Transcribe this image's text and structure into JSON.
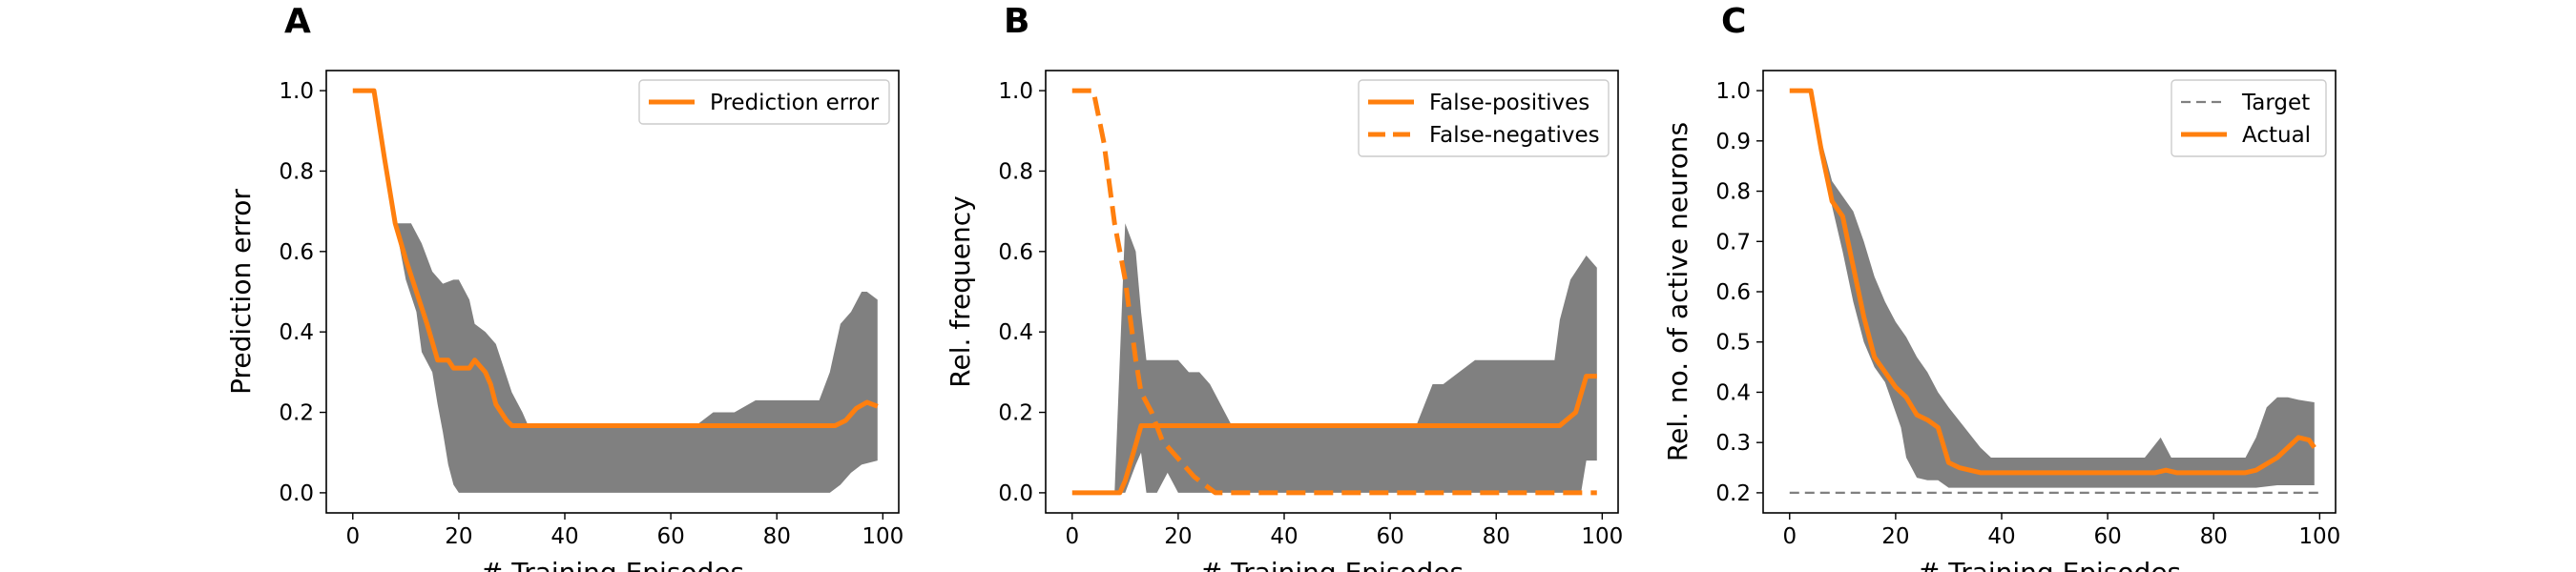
{
  "chart_data": [
    {
      "type": "line",
      "panel_label": "A",
      "xlabel": "# Training Episodes",
      "ylabel": "Prediction error",
      "xlim": [
        -5,
        103
      ],
      "ylim": [
        -0.05,
        1.05
      ],
      "xticks": [
        0,
        20,
        40,
        60,
        80,
        100
      ],
      "yticks": [
        0.0,
        0.2,
        0.4,
        0.6,
        0.8,
        1.0
      ],
      "ytick_labels": [
        "0.0",
        "0.2",
        "0.4",
        "0.6",
        "0.8",
        "1.0"
      ],
      "legend": {
        "position": "upper right",
        "entries": [
          "Prediction error"
        ]
      },
      "band": {
        "color": "#808080",
        "upper": [
          [
            0,
            1.0
          ],
          [
            4,
            1.0
          ],
          [
            8,
            0.67
          ],
          [
            11,
            0.67
          ],
          [
            13,
            0.62
          ],
          [
            15,
            0.55
          ],
          [
            17,
            0.52
          ],
          [
            19,
            0.53
          ],
          [
            20,
            0.53
          ],
          [
            22,
            0.48
          ],
          [
            23,
            0.42
          ],
          [
            25,
            0.4
          ],
          [
            27,
            0.37
          ],
          [
            28,
            0.33
          ],
          [
            30,
            0.25
          ],
          [
            32,
            0.2
          ],
          [
            33,
            0.17
          ],
          [
            35,
            0.17
          ],
          [
            65,
            0.17
          ],
          [
            68,
            0.2
          ],
          [
            72,
            0.2
          ],
          [
            76,
            0.23
          ],
          [
            80,
            0.23
          ],
          [
            86,
            0.23
          ],
          [
            88,
            0.23
          ],
          [
            90,
            0.3
          ],
          [
            92,
            0.42
          ],
          [
            94,
            0.45
          ],
          [
            96,
            0.5
          ],
          [
            97,
            0.5
          ],
          [
            99,
            0.48
          ]
        ],
        "lower": [
          [
            0,
            1.0
          ],
          [
            4,
            1.0
          ],
          [
            8,
            0.67
          ],
          [
            10,
            0.53
          ],
          [
            12,
            0.45
          ],
          [
            13,
            0.35
          ],
          [
            15,
            0.3
          ],
          [
            16,
            0.22
          ],
          [
            17,
            0.15
          ],
          [
            18,
            0.07
          ],
          [
            19,
            0.02
          ],
          [
            20,
            0.0
          ],
          [
            90,
            0.0
          ],
          [
            92,
            0.02
          ],
          [
            94,
            0.05
          ],
          [
            96,
            0.07
          ],
          [
            99,
            0.08
          ]
        ]
      },
      "series": [
        {
          "name": "Prediction error",
          "color": "#ff7f0e",
          "style": "solid",
          "points": [
            [
              0,
              1.0
            ],
            [
              4,
              1.0
            ],
            [
              6,
              0.83
            ],
            [
              8,
              0.67
            ],
            [
              10,
              0.58
            ],
            [
              12,
              0.5
            ],
            [
              14,
              0.42
            ],
            [
              16,
              0.33
            ],
            [
              18,
              0.33
            ],
            [
              19,
              0.31
            ],
            [
              22,
              0.31
            ],
            [
              23,
              0.33
            ],
            [
              25,
              0.3
            ],
            [
              26,
              0.27
            ],
            [
              27,
              0.22
            ],
            [
              29,
              0.18
            ],
            [
              30,
              0.167
            ],
            [
              91,
              0.167
            ],
            [
              93,
              0.18
            ],
            [
              95,
              0.21
            ],
            [
              97,
              0.225
            ],
            [
              99,
              0.215
            ]
          ]
        }
      ]
    },
    {
      "type": "line",
      "panel_label": "B",
      "xlabel": "# Training Episodes",
      "ylabel": "Rel. frequency",
      "xlim": [
        -5,
        103
      ],
      "ylim": [
        -0.05,
        1.05
      ],
      "xticks": [
        0,
        20,
        40,
        60,
        80,
        100
      ],
      "yticks": [
        0.0,
        0.2,
        0.4,
        0.6,
        0.8,
        1.0
      ],
      "ytick_labels": [
        "0.0",
        "0.2",
        "0.4",
        "0.6",
        "0.8",
        "1.0"
      ],
      "legend": {
        "position": "upper right",
        "entries": [
          "False-positives",
          "False-negatives"
        ]
      },
      "band": {
        "color": "#808080",
        "upper": [
          [
            0,
            0.0
          ],
          [
            8,
            0.0
          ],
          [
            10,
            0.67
          ],
          [
            12,
            0.6
          ],
          [
            13,
            0.45
          ],
          [
            14,
            0.33
          ],
          [
            16,
            0.33
          ],
          [
            18,
            0.33
          ],
          [
            20,
            0.33
          ],
          [
            22,
            0.3
          ],
          [
            24,
            0.3
          ],
          [
            26,
            0.27
          ],
          [
            28,
            0.22
          ],
          [
            30,
            0.17
          ],
          [
            65,
            0.17
          ],
          [
            68,
            0.27
          ],
          [
            70,
            0.27
          ],
          [
            76,
            0.33
          ],
          [
            80,
            0.33
          ],
          [
            88,
            0.33
          ],
          [
            91,
            0.33
          ],
          [
            92,
            0.43
          ],
          [
            94,
            0.53
          ],
          [
            96,
            0.57
          ],
          [
            97,
            0.59
          ],
          [
            99,
            0.56
          ]
        ],
        "lower": [
          [
            0,
            0.0
          ],
          [
            8,
            0.0
          ],
          [
            10,
            0.0
          ],
          [
            12,
            0.07
          ],
          [
            13,
            0.1
          ],
          [
            14,
            0.0
          ],
          [
            16,
            0.0
          ],
          [
            18,
            0.05
          ],
          [
            20,
            0.0
          ],
          [
            96,
            0.0
          ],
          [
            97,
            0.08
          ],
          [
            98,
            0.08
          ],
          [
            99,
            0.08
          ]
        ]
      },
      "series": [
        {
          "name": "False-positives",
          "color": "#ff7f0e",
          "style": "solid",
          "points": [
            [
              0,
              0.0
            ],
            [
              9,
              0.0
            ],
            [
              10,
              0.03
            ],
            [
              12,
              0.12
            ],
            [
              13,
              0.167
            ],
            [
              92,
              0.167
            ],
            [
              95,
              0.2
            ],
            [
              97,
              0.29
            ],
            [
              99,
              0.29
            ]
          ]
        },
        {
          "name": "False-negatives",
          "color": "#ff7f0e",
          "style": "dashed",
          "points": [
            [
              0,
              1.0
            ],
            [
              4,
              1.0
            ],
            [
              6,
              0.87
            ],
            [
              8,
              0.67
            ],
            [
              10,
              0.53
            ],
            [
              12,
              0.33
            ],
            [
              13,
              0.25
            ],
            [
              15,
              0.2
            ],
            [
              17,
              0.13
            ],
            [
              19,
              0.1
            ],
            [
              21,
              0.07
            ],
            [
              23,
              0.04
            ],
            [
              25,
              0.02
            ],
            [
              27,
              0.0
            ],
            [
              99,
              0.0
            ]
          ]
        }
      ]
    },
    {
      "type": "line",
      "panel_label": "C",
      "xlabel": "# Training Episodes",
      "ylabel": "Rel. no. of active neurons",
      "xlim": [
        -5,
        103
      ],
      "ylim": [
        0.16,
        1.04
      ],
      "xticks": [
        0,
        20,
        40,
        60,
        80,
        100
      ],
      "yticks": [
        0.2,
        0.3,
        0.4,
        0.5,
        0.6,
        0.7,
        0.8,
        0.9,
        1.0
      ],
      "ytick_labels": [
        "0.2",
        "0.3",
        "0.4",
        "0.5",
        "0.6",
        "0.7",
        "0.8",
        "0.9",
        "1.0"
      ],
      "legend": {
        "position": "upper right",
        "entries": [
          "Target",
          "Actual"
        ]
      },
      "band": {
        "color": "#808080",
        "upper": [
          [
            0,
            1.0
          ],
          [
            4,
            1.0
          ],
          [
            6,
            0.9
          ],
          [
            8,
            0.82
          ],
          [
            10,
            0.79
          ],
          [
            12,
            0.76
          ],
          [
            14,
            0.7
          ],
          [
            16,
            0.63
          ],
          [
            18,
            0.58
          ],
          [
            20,
            0.54
          ],
          [
            22,
            0.51
          ],
          [
            24,
            0.47
          ],
          [
            26,
            0.44
          ],
          [
            28,
            0.4
          ],
          [
            30,
            0.37
          ],
          [
            33,
            0.33
          ],
          [
            36,
            0.29
          ],
          [
            38,
            0.27
          ],
          [
            67,
            0.27
          ],
          [
            70,
            0.31
          ],
          [
            72,
            0.27
          ],
          [
            86,
            0.27
          ],
          [
            88,
            0.31
          ],
          [
            90,
            0.37
          ],
          [
            92,
            0.39
          ],
          [
            94,
            0.39
          ],
          [
            96,
            0.385
          ],
          [
            99,
            0.38
          ]
        ],
        "lower": [
          [
            0,
            1.0
          ],
          [
            4,
            1.0
          ],
          [
            6,
            0.87
          ],
          [
            8,
            0.77
          ],
          [
            10,
            0.68
          ],
          [
            12,
            0.58
          ],
          [
            14,
            0.5
          ],
          [
            16,
            0.45
          ],
          [
            18,
            0.42
          ],
          [
            20,
            0.36
          ],
          [
            21,
            0.33
          ],
          [
            22,
            0.27
          ],
          [
            24,
            0.23
          ],
          [
            26,
            0.225
          ],
          [
            28,
            0.225
          ],
          [
            30,
            0.21
          ],
          [
            32,
            0.21
          ],
          [
            88,
            0.21
          ],
          [
            92,
            0.215
          ],
          [
            96,
            0.215
          ],
          [
            99,
            0.215
          ]
        ]
      },
      "series": [
        {
          "name": "Target",
          "color": "#808080",
          "style": "dashed",
          "points": [
            [
              0,
              0.2
            ],
            [
              100,
              0.2
            ]
          ]
        },
        {
          "name": "Actual",
          "color": "#ff7f0e",
          "style": "solid",
          "points": [
            [
              0,
              1.0
            ],
            [
              4,
              1.0
            ],
            [
              6,
              0.88
            ],
            [
              8,
              0.78
            ],
            [
              10,
              0.75
            ],
            [
              12,
              0.65
            ],
            [
              14,
              0.55
            ],
            [
              16,
              0.47
            ],
            [
              18,
              0.44
            ],
            [
              20,
              0.41
            ],
            [
              22,
              0.39
            ],
            [
              24,
              0.355
            ],
            [
              26,
              0.345
            ],
            [
              28,
              0.33
            ],
            [
              30,
              0.26
            ],
            [
              32,
              0.25
            ],
            [
              34,
              0.245
            ],
            [
              36,
              0.24
            ],
            [
              69,
              0.24
            ],
            [
              71,
              0.245
            ],
            [
              73,
              0.24
            ],
            [
              86,
              0.24
            ],
            [
              88,
              0.245
            ],
            [
              92,
              0.27
            ],
            [
              96,
              0.31
            ],
            [
              98,
              0.305
            ],
            [
              99,
              0.29
            ]
          ]
        }
      ]
    }
  ]
}
